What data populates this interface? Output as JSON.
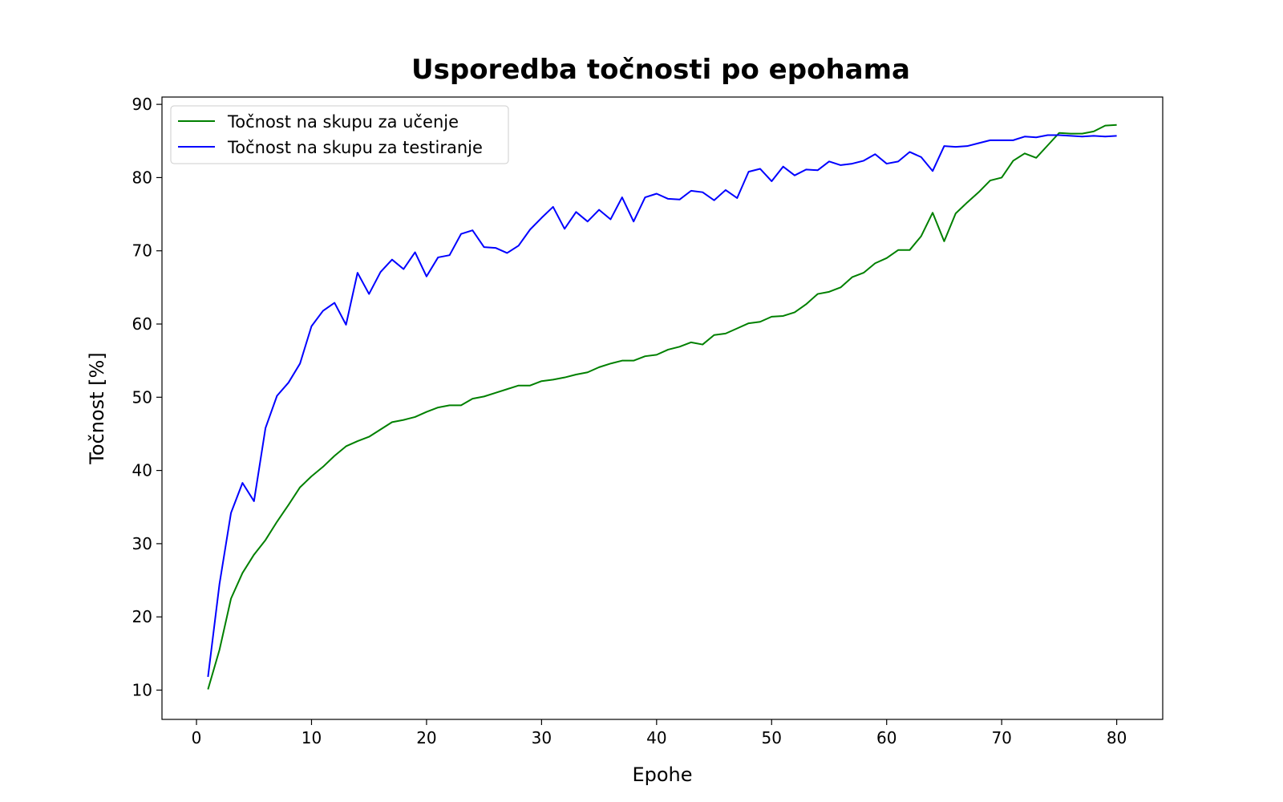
{
  "chart_data": {
    "type": "line",
    "title": "Usporedba točnosti po epohama",
    "xlabel": "Epohe",
    "ylabel": "Točnost [%]",
    "xlim": [
      -3,
      84
    ],
    "ylim": [
      6,
      91
    ],
    "xticks": [
      0,
      10,
      20,
      30,
      40,
      50,
      60,
      70,
      80
    ],
    "yticks": [
      10,
      20,
      30,
      40,
      50,
      60,
      70,
      80,
      90
    ],
    "grid": false,
    "legend_position": "upper-left",
    "x": [
      1,
      2,
      3,
      4,
      5,
      6,
      7,
      8,
      9,
      10,
      11,
      12,
      13,
      14,
      15,
      16,
      17,
      18,
      19,
      20,
      21,
      22,
      23,
      24,
      25,
      26,
      27,
      28,
      29,
      30,
      31,
      32,
      33,
      34,
      35,
      36,
      37,
      38,
      39,
      40,
      41,
      42,
      43,
      44,
      45,
      46,
      47,
      48,
      49,
      50,
      51,
      52,
      53,
      54,
      55,
      56,
      57,
      58,
      59,
      60,
      61,
      62,
      63,
      64,
      65,
      66,
      67,
      68,
      69,
      70,
      71,
      72,
      73,
      74,
      75,
      76,
      77,
      78,
      79,
      80
    ],
    "series": [
      {
        "name": "Točnost na skupu za učenje",
        "color": "#008000",
        "values": [
          10.1,
          15.5,
          22.5,
          26.0,
          28.5,
          30.5,
          33.0,
          35.3,
          37.7,
          39.2,
          40.5,
          42.0,
          43.3,
          44.0,
          44.6,
          45.6,
          46.6,
          46.9,
          47.3,
          48.0,
          48.6,
          48.9,
          48.9,
          49.8,
          50.1,
          50.6,
          51.1,
          51.6,
          51.6,
          52.2,
          52.4,
          52.7,
          53.1,
          53.4,
          54.1,
          54.6,
          55.0,
          55.0,
          55.6,
          55.8,
          56.5,
          56.9,
          57.5,
          57.2,
          58.5,
          58.7,
          59.4,
          60.1,
          60.3,
          61.0,
          61.1,
          61.6,
          62.7,
          64.1,
          64.4,
          65.0,
          66.4,
          67.0,
          68.3,
          69.0,
          70.1,
          70.1,
          72.0,
          75.2,
          71.3,
          75.1,
          76.6,
          78.0,
          79.6,
          80.0,
          82.3,
          83.3,
          82.7,
          84.4,
          86.1,
          86.0,
          86.0,
          86.3,
          87.1,
          87.2
        ]
      },
      {
        "name": "Točnost na skupu za testiranje",
        "color": "#0000ff",
        "values": [
          11.8,
          24.5,
          34.2,
          38.3,
          35.8,
          45.8,
          50.2,
          52.0,
          54.6,
          59.7,
          61.8,
          62.9,
          59.9,
          67.0,
          64.1,
          67.1,
          68.8,
          67.5,
          69.8,
          66.5,
          69.1,
          69.4,
          72.3,
          72.8,
          70.5,
          70.4,
          69.7,
          70.7,
          72.9,
          74.5,
          76.0,
          73.0,
          75.3,
          74.0,
          75.6,
          74.3,
          77.3,
          74.0,
          77.3,
          77.8,
          77.1,
          77.0,
          78.2,
          78.0,
          76.9,
          78.3,
          77.2,
          80.8,
          81.2,
          79.5,
          81.5,
          80.3,
          81.1,
          81.0,
          82.2,
          81.7,
          81.9,
          82.3,
          83.2,
          81.9,
          82.2,
          83.5,
          82.8,
          80.9,
          84.3,
          84.2,
          84.3,
          84.7,
          85.1,
          85.1,
          85.1,
          85.6,
          85.5,
          85.8,
          85.8,
          85.7,
          85.6,
          85.7,
          85.6,
          85.7
        ]
      }
    ]
  }
}
